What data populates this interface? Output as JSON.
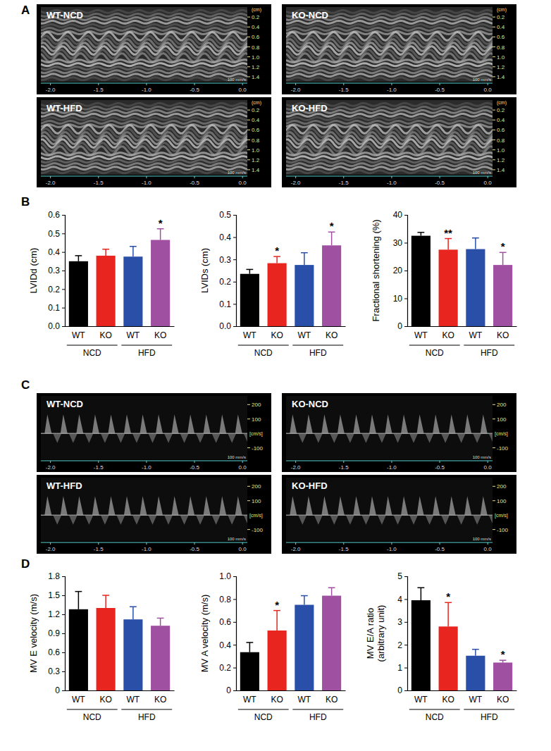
{
  "panels": [
    "A",
    "B",
    "C",
    "D"
  ],
  "echo_panels": [
    {
      "images": [
        "WT-NCD",
        "KO-NCD",
        "WT-HFD",
        "KO-HFD"
      ],
      "depth_lim": [
        0,
        1.5
      ],
      "depth_ticks": [
        0.2,
        0.4,
        0.6,
        0.8,
        {
          "value": 1.0,
          "label": "1.0"
        },
        1.2,
        1.4
      ],
      "depth_unit": "(cm)",
      "time_lim": [
        -2.1,
        0.05
      ],
      "time_ticks": [
        {
          "value": -2,
          "label": "-2.0"
        },
        -1.5,
        {
          "value": -1,
          "label": "-1.0"
        },
        -0.5,
        {
          "value": 0,
          "label": "0.0"
        }
      ],
      "sweep": "100 mm/s"
    },
    {
      "images": [
        "WT-NCD",
        "KO-NCD",
        "WT-HFD",
        "KO-HFD"
      ],
      "velocity_lim": [
        -180,
        260
      ],
      "velocity_ticks": [
        200,
        100,
        -100
      ],
      "velocity_unit": "[cm/s]",
      "time_lim": [
        -2.1,
        0.05
      ],
      "time_ticks": [
        {
          "value": -2,
          "label": "-2.0"
        },
        -1.5,
        {
          "value": -1,
          "label": "-1.0"
        },
        -0.5,
        {
          "value": 0,
          "label": "0.0"
        }
      ],
      "sweep": "100 mm/s"
    }
  ],
  "chart_data": [
    {
      "type": "bar",
      "y_label": "LVIDd (cm)",
      "categories": [
        "WT",
        "KO",
        "WT",
        "KO"
      ],
      "groups": [
        "NCD",
        "HFD"
      ],
      "values": [
        0.35,
        0.38,
        0.375,
        0.465
      ],
      "errors": [
        0.03,
        0.035,
        0.055,
        0.06
      ],
      "annotations": [
        null,
        null,
        null,
        "*"
      ],
      "colors": [
        "#000000",
        "#e8251f",
        "#2a4fa8",
        "#a050a0"
      ],
      "ylim": [
        0,
        0.6
      ],
      "yticks": [
        {
          "value": 0,
          "label": "0.0"
        },
        0.1,
        0.2,
        0.3,
        0.4,
        0.5,
        0.6
      ]
    },
    {
      "type": "bar",
      "y_label": "LVIDs (cm)",
      "categories": [
        "WT",
        "KO",
        "WT",
        "KO"
      ],
      "groups": [
        "NCD",
        "HFD"
      ],
      "values": [
        0.235,
        0.283,
        0.275,
        0.363
      ],
      "errors": [
        0.02,
        0.03,
        0.055,
        0.06
      ],
      "annotations": [
        null,
        "*",
        null,
        "*"
      ],
      "colors": [
        "#000000",
        "#e8251f",
        "#2a4fa8",
        "#a050a0"
      ],
      "ylim": [
        0,
        0.5
      ],
      "yticks": [
        {
          "value": 0,
          "label": "0.0"
        },
        0.1,
        0.2,
        0.3,
        0.4,
        0.5
      ]
    },
    {
      "type": "bar",
      "y_label": "Fractional shortening (%)",
      "categories": [
        "WT",
        "KO",
        "WT",
        "KO"
      ],
      "groups": [
        "NCD",
        "HFD"
      ],
      "values": [
        32.5,
        27.5,
        27.7,
        22
      ],
      "errors": [
        1.2,
        4,
        4,
        4.5
      ],
      "annotations": [
        null,
        "**",
        null,
        "*"
      ],
      "colors": [
        "#000000",
        "#e8251f",
        "#2a4fa8",
        "#a050a0"
      ],
      "ylim": [
        0,
        40
      ],
      "yticks": [
        0,
        10,
        20,
        30,
        40
      ]
    },
    {
      "type": "bar",
      "y_label": "MV E velocity (m/s)",
      "categories": [
        "WT",
        "KO",
        "WT",
        "KO"
      ],
      "groups": [
        "NCD",
        "HFD"
      ],
      "values": [
        1.28,
        1.3,
        1.12,
        1.02
      ],
      "errors": [
        0.28,
        0.2,
        0.2,
        0.12
      ],
      "annotations": [
        null,
        null,
        null,
        null
      ],
      "colors": [
        "#000000",
        "#e8251f",
        "#2a4fa8",
        "#a050a0"
      ],
      "ylim": [
        0,
        1.8
      ],
      "yticks": [
        0,
        0.3,
        0.6,
        0.9,
        1.2,
        1.5,
        1.8
      ]
    },
    {
      "type": "bar",
      "y_label": "MV A velocity (m/s)",
      "categories": [
        "WT",
        "KO",
        "WT",
        "KO"
      ],
      "groups": [
        "NCD",
        "HFD"
      ],
      "values": [
        0.335,
        0.525,
        0.75,
        0.83
      ],
      "errors": [
        0.085,
        0.175,
        0.08,
        0.07
      ],
      "annotations": [
        null,
        "*",
        null,
        null
      ],
      "colors": [
        "#000000",
        "#e8251f",
        "#2a4fa8",
        "#a050a0"
      ],
      "ylim": [
        0,
        1.0
      ],
      "yticks": [
        0,
        0.2,
        0.4,
        0.6,
        0.8,
        {
          "value": 1.0,
          "label": "1.0"
        }
      ]
    },
    {
      "type": "bar",
      "y_label": "MV E/A ratio",
      "y_sublabel": "(arbitrary unit)",
      "categories": [
        "WT",
        "KO",
        "WT",
        "KO"
      ],
      "groups": [
        "NCD",
        "HFD"
      ],
      "values": [
        3.95,
        2.8,
        1.52,
        1.22
      ],
      "errors": [
        0.55,
        1.05,
        0.28,
        0.1
      ],
      "annotations": [
        null,
        "*",
        null,
        "*"
      ],
      "colors": [
        "#000000",
        "#e8251f",
        "#2a4fa8",
        "#a050a0"
      ],
      "ylim": [
        0,
        5
      ],
      "yticks": [
        0,
        1,
        2,
        3,
        4,
        5
      ]
    }
  ]
}
